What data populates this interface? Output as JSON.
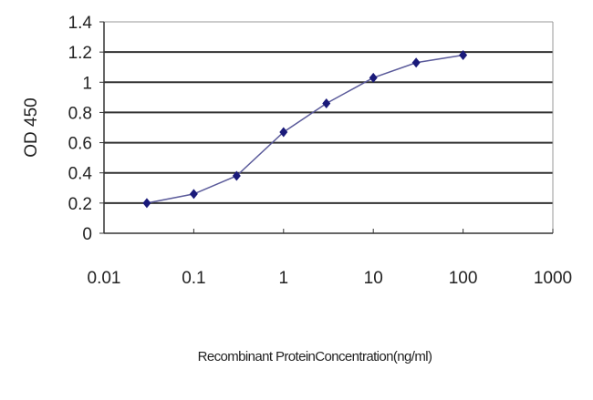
{
  "chart_data": {
    "type": "line",
    "title": "",
    "xlabel": "Recombinant ProteinConcentration(ng/ml)",
    "ylabel": "OD 450",
    "x_scale": "log",
    "xlim": [
      0.01,
      1000
    ],
    "ylim": [
      0,
      1.4
    ],
    "x_ticks": [
      "0.01",
      "0.1",
      "1",
      "10",
      "100",
      "1000"
    ],
    "y_ticks": [
      "0",
      "0.2",
      "0.4",
      "0.6",
      "0.8",
      "1",
      "1.2",
      "1.4"
    ],
    "grid": "horizontal",
    "series": [
      {
        "x": [
          0.03,
          0.1,
          0.3,
          1,
          3,
          10,
          30,
          100
        ],
        "y": [
          0.2,
          0.26,
          0.38,
          0.67,
          0.86,
          1.03,
          1.13,
          1.18
        ],
        "color": "#1a1a7a",
        "marker": "diamond"
      }
    ]
  }
}
